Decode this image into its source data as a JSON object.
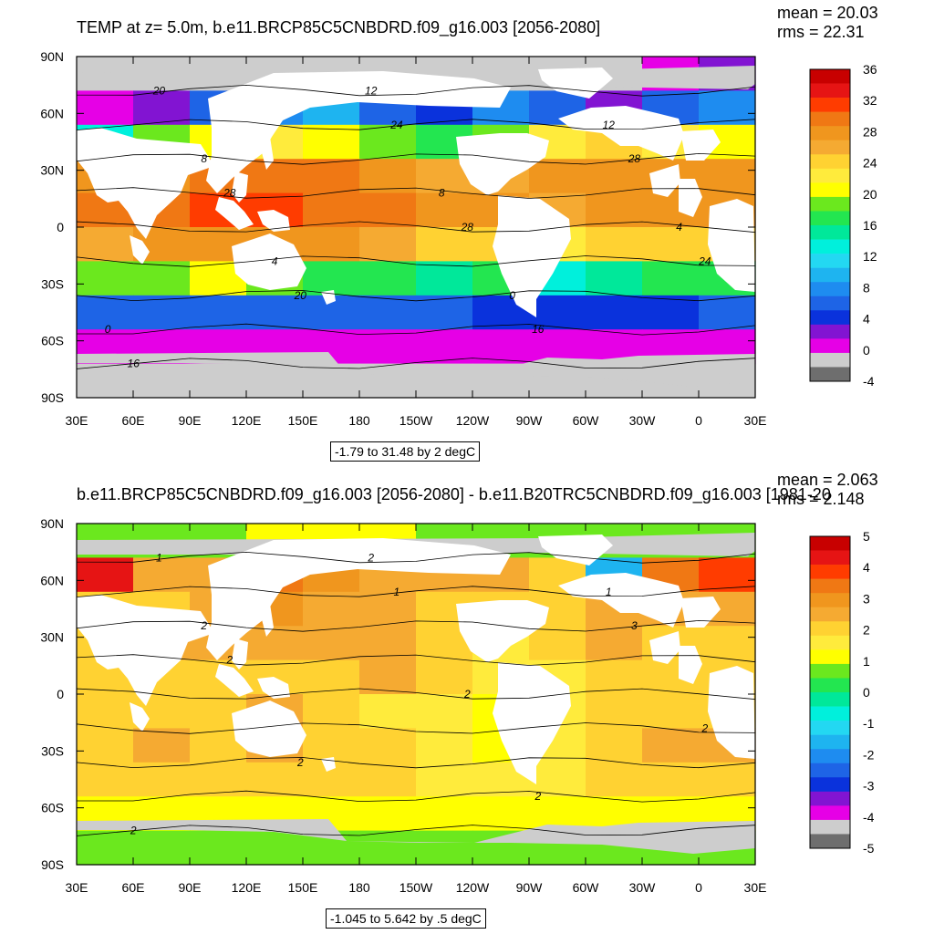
{
  "chart_data": [
    {
      "type": "heatmap",
      "title": "TEMP at z=   5.0m, b.e11.BRCP85C5CNBDRD.f09_g16.003 [2056-2080]",
      "stats": {
        "mean": "mean = 20.03",
        "rms": "rms = 22.31"
      },
      "info": "-1.79 to 31.48 by 2 degC",
      "x_ticks": [
        "30E",
        "60E",
        "90E",
        "120E",
        "150E",
        "180",
        "150W",
        "120W",
        "90W",
        "60W",
        "30W",
        "0",
        "30E"
      ],
      "y_ticks": [
        "90N",
        "60N",
        "30N",
        "0",
        "30S",
        "60S",
        "90S"
      ],
      "xlim": [
        30,
        390
      ],
      "ylim": [
        -90,
        90
      ],
      "colorbar": {
        "labels": [
          "36",
          "32",
          "28",
          "24",
          "20",
          "16",
          "12",
          "8",
          "4",
          "0",
          "-4"
        ],
        "colors": [
          "#c80000",
          "#e61414",
          "#ff3c00",
          "#f07814",
          "#f0961e",
          "#f5aa32",
          "#ffd232",
          "#ffeb3c",
          "#ffff00",
          "#6be81e",
          "#23e650",
          "#00e89a",
          "#00f0dc",
          "#23d8f2",
          "#1eb4f0",
          "#1e8cf0",
          "#1e64e6",
          "#0a32dc",
          "#8214d2",
          "#e600e6",
          "#cdcdcd",
          "#6e6e6e"
        ]
      },
      "contour_labels": [
        "20",
        "24",
        "28",
        "28",
        "28",
        "24",
        "20",
        "16",
        "16",
        "12",
        "12",
        "8",
        "8",
        "4",
        "4",
        "0",
        "0"
      ],
      "values": [
        [
          -1.5,
          -1.5,
          -1.2,
          -1.0,
          -1.2,
          -1.5,
          -1.5,
          -1.2,
          -1.0,
          -0.5,
          0.5,
          1.5
        ],
        [
          0.0,
          2.0,
          6.0,
          8.0,
          10.0,
          6.0,
          4.0,
          8.0,
          6.0,
          2.0,
          6.0,
          8.0
        ],
        [
          14.0,
          18.0,
          20.0,
          22.0,
          20.0,
          18.0,
          16.0,
          18.0,
          22.0,
          24.0,
          22.0,
          20.0
        ],
        [
          28.0,
          28.0,
          29.0,
          30.0,
          29.0,
          28.0,
          26.0,
          26.0,
          27.0,
          28.0,
          28.0,
          27.0
        ],
        [
          29.0,
          30.0,
          31.0,
          31.0,
          30.0,
          29.0,
          28.0,
          27.0,
          26.0,
          27.0,
          28.0,
          28.0
        ],
        [
          26.0,
          27.0,
          28.0,
          28.0,
          27.0,
          26.0,
          25.0,
          24.0,
          22.0,
          24.0,
          25.0,
          25.0
        ],
        [
          18.0,
          18.0,
          20.0,
          18.0,
          17.0,
          16.0,
          15.0,
          16.0,
          14.0,
          15.0,
          16.0,
          17.0
        ],
        [
          6.0,
          6.0,
          6.0,
          6.0,
          6.0,
          6.0,
          6.0,
          5.0,
          4.0,
          5.0,
          5.0,
          6.0
        ],
        [
          0.0,
          0.0,
          0.0,
          0.0,
          0.0,
          0.0,
          0.0,
          0.0,
          0.0,
          0.0,
          0.0,
          0.0
        ],
        [
          -1.5,
          -1.5,
          -1.5,
          -1.5,
          -1.5,
          -1.5,
          -1.5,
          -1.5,
          -1.5,
          -1.5,
          -1.5,
          -1.5
        ]
      ]
    },
    {
      "type": "heatmap",
      "title": "b.e11.BRCP85C5CNBDRD.f09_g16.003 [2056-2080] - b.e11.B20TRC5CNBDRD.f09_g16.003 [1981-20",
      "stats": {
        "mean": "mean = 2.063",
        "rms": "rms = 2.148"
      },
      "info": "-1.045 to 5.642 by .5 degC",
      "x_ticks": [
        "30E",
        "60E",
        "90E",
        "120E",
        "150E",
        "180",
        "150W",
        "120W",
        "90W",
        "60W",
        "30W",
        "0",
        "30E"
      ],
      "y_ticks": [
        "90N",
        "60N",
        "30N",
        "0",
        "30S",
        "60S",
        "90S"
      ],
      "xlim": [
        30,
        390
      ],
      "ylim": [
        -90,
        90
      ],
      "colorbar": {
        "labels": [
          "5",
          "4",
          "3",
          "2",
          "1",
          "0",
          "-1",
          "-2",
          "-3",
          "-4",
          "-5"
        ],
        "colors": [
          "#c80000",
          "#e61414",
          "#ff3c00",
          "#f07814",
          "#f0961e",
          "#f5aa32",
          "#ffd232",
          "#ffeb3c",
          "#ffff00",
          "#6be81e",
          "#23e650",
          "#00e89a",
          "#00f0dc",
          "#23d8f2",
          "#1eb4f0",
          "#1e8cf0",
          "#1e64e6",
          "#0a32dc",
          "#8214d2",
          "#e600e6",
          "#cdcdcd",
          "#6e6e6e"
        ]
      },
      "contour_labels": [
        "1",
        "1",
        "3",
        "2",
        "2",
        "2",
        "2",
        "2",
        "2",
        "2",
        "1",
        "2"
      ],
      "values": [
        [
          0.8,
          0.8,
          0.9,
          1.0,
          1.0,
          1.0,
          0.9,
          0.8,
          0.8,
          0.7,
          0.8,
          0.9
        ],
        [
          4.5,
          2.5,
          2.5,
          3.5,
          3.0,
          2.5,
          2.5,
          2.5,
          2.0,
          -1.5,
          3.5,
          4.0
        ],
        [
          2.0,
          2.0,
          2.5,
          3.0,
          2.5,
          2.5,
          2.0,
          2.0,
          2.0,
          2.5,
          2.5,
          2.5
        ],
        [
          2.0,
          2.5,
          2.5,
          2.5,
          2.5,
          2.5,
          2.0,
          1.5,
          2.0,
          2.5,
          2.0,
          2.0
        ],
        [
          2.0,
          2.0,
          2.0,
          2.0,
          2.0,
          2.5,
          2.0,
          1.5,
          1.5,
          2.0,
          2.0,
          2.0
        ],
        [
          2.0,
          2.0,
          2.0,
          2.5,
          2.0,
          1.5,
          1.5,
          1.0,
          1.5,
          2.0,
          2.0,
          2.0
        ],
        [
          2.0,
          2.5,
          2.0,
          2.5,
          2.0,
          2.0,
          1.5,
          1.0,
          1.5,
          2.0,
          2.5,
          2.5
        ],
        [
          2.0,
          2.0,
          2.0,
          2.0,
          2.0,
          2.0,
          1.5,
          1.5,
          1.5,
          2.0,
          2.0,
          2.0
        ],
        [
          1.0,
          1.0,
          1.0,
          1.0,
          1.0,
          1.0,
          1.0,
          1.0,
          1.0,
          1.0,
          1.0,
          1.0
        ],
        [
          0.5,
          0.5,
          0.5,
          0.5,
          0.5,
          0.5,
          0.5,
          0.5,
          0.5,
          0.5,
          0.5,
          0.5
        ]
      ]
    }
  ]
}
